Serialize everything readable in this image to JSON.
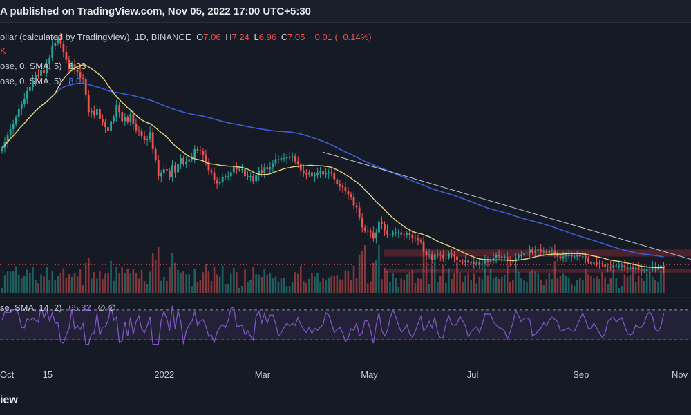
{
  "header": {
    "published": "A published on TradingView.com, Nov 05, 2022 17:00 UTC+5:30"
  },
  "legend": {
    "symbol": "ollar (calculated by TradingView), 1D, BINANCE",
    "o_label": "O",
    "o_val": "7.06",
    "h_label": "H",
    "h_val": "7.24",
    "l_label": "L",
    "l_val": "6.96",
    "c_label": "C",
    "c_val": "7.05",
    "change": "−0.01 (−0.14%)",
    "k": "K",
    "sma1_label": "ose, 0, SMA, 5)",
    "sma1_val": "6.33",
    "sma2_label": "ose, 0, SMA, 5)",
    "sma2_val": "8.0",
    "rsi_label": "se, SMA, 14, 2)",
    "rsi_val": "65.32",
    "rsi_extra": "∅ ∅"
  },
  "footer": {
    "brand": "iew"
  },
  "colors": {
    "up": "#26a69a",
    "down": "#ef5350",
    "sma_fast": "#e6d47a",
    "sma_slow": "#3d5ed6",
    "rsi": "#7e57c2",
    "trendline": "#c8ccd6",
    "zone": "#7a2a35",
    "background": "#161a25"
  },
  "chart_data": {
    "type": "candlestick",
    "title": "ollar (calculated by TradingView), 1D, BINANCE",
    "x_tick_labels": [
      "Oct",
      "15",
      "2022",
      "Mar",
      "May",
      "Jul",
      "Sep",
      "Nov"
    ],
    "x_tick_index": [
      0,
      17,
      57,
      93,
      131,
      169,
      207,
      245
    ],
    "ohlc_last": {
      "open": 7.06,
      "high": 7.24,
      "low": 6.96,
      "close": 7.05,
      "change": -0.01,
      "change_pct": -0.14
    },
    "close_series": [
      19.0,
      19.6,
      20.3,
      20.9,
      21.4,
      22.1,
      22.9,
      23.4,
      23.9,
      24.7,
      25.1,
      25.8,
      26.3,
      26.2,
      26.8,
      26.5,
      27.4,
      28.0,
      29.2,
      29.5,
      30.0,
      29.4,
      28.6,
      27.8,
      26.9,
      27.4,
      26.8,
      26.6,
      26.0,
      25.9,
      24.3,
      22.6,
      22.7,
      22.3,
      22.9,
      21.9,
      21.6,
      21.1,
      20.7,
      21.7,
      22.1,
      23.3,
      22.6,
      21.7,
      22.1,
      21.6,
      22.4,
      21.4,
      20.8,
      20.7,
      20.2,
      19.8,
      19.9,
      20.6,
      18.9,
      17.8,
      16.2,
      16.5,
      16.9,
      16.8,
      16.1,
      17.3,
      16.6,
      17.4,
      18.0,
      17.4,
      17.7,
      17.9,
      18.0,
      18.9,
      18.8,
      18.7,
      18.3,
      17.6,
      16.8,
      16.6,
      15.8,
      15.5,
      15.6,
      16.1,
      16.2,
      16.2,
      16.6,
      17.2,
      16.9,
      16.9,
      16.9,
      16.2,
      16.2,
      16.2,
      15.7,
      16.3,
      16.8,
      16.5,
      17.1,
      16.9,
      17.1,
      17.5,
      17.9,
      17.9,
      18.0,
      18.0,
      18.1,
      18.1,
      18.2,
      17.7,
      17.4,
      16.8,
      16.5,
      16.4,
      16.6,
      16.2,
      16.3,
      16.5,
      16.7,
      16.4,
      16.5,
      16.6,
      16.5,
      15.9,
      15.4,
      15.2,
      15.1,
      14.7,
      14.4,
      14.1,
      13.3,
      13.1,
      12.1,
      11.1,
      10.8,
      10.7,
      10.6,
      10.0,
      10.6,
      11.7,
      11.4,
      10.8,
      10.4,
      10.4,
      10.6,
      10.6,
      10.6,
      10.4,
      10.3,
      10.5,
      10.3,
      10.1,
      10.0,
      9.8,
      9.7,
      8.7,
      8.3,
      8.4,
      7.9,
      8.4,
      8.4,
      8.3,
      8.0,
      8.1,
      8.5,
      8.4,
      8.2,
      7.8,
      7.7,
      7.6,
      7.8,
      7.6,
      7.6,
      7.5,
      7.6,
      7.4,
      7.5,
      7.8,
      7.7,
      7.9,
      8.1,
      8.3,
      8.2,
      8.1,
      8.2,
      7.9,
      7.8,
      7.7,
      8.1,
      8.3,
      8.3,
      8.5,
      8.6,
      8.9,
      8.6,
      8.8,
      8.9,
      8.7,
      8.7,
      8.6,
      8.8,
      8.8,
      8.4,
      8.2,
      8.0,
      8.2,
      8.3,
      8.3,
      8.2,
      8.2,
      8.3,
      8.2,
      8.2,
      8.0,
      7.7,
      7.5,
      7.6,
      7.5,
      7.5,
      7.4,
      7.2,
      7.2,
      7.1,
      7.3,
      7.3,
      7.3,
      7.3,
      7.1,
      7.0,
      7.1,
      7.0,
      7.1,
      6.9,
      6.8,
      6.8,
      6.9,
      7.0,
      7.2,
      7.1,
      7.1,
      7.3,
      7.05
    ],
    "trendline": {
      "from": {
        "index": 115,
        "value": 18.6
      },
      "to": {
        "index": 247,
        "value": 7.9
      }
    },
    "support_zones": [
      {
        "low": 8.2,
        "high": 8.9
      },
      {
        "low": 6.6,
        "high": 7.0
      }
    ],
    "indicators": [
      "SMA 5 (fast)",
      "SMA 5 (slow)",
      "RSI 14"
    ],
    "rsi_last": 65.32,
    "rsi_levels": [
      70,
      50,
      30
    ]
  }
}
